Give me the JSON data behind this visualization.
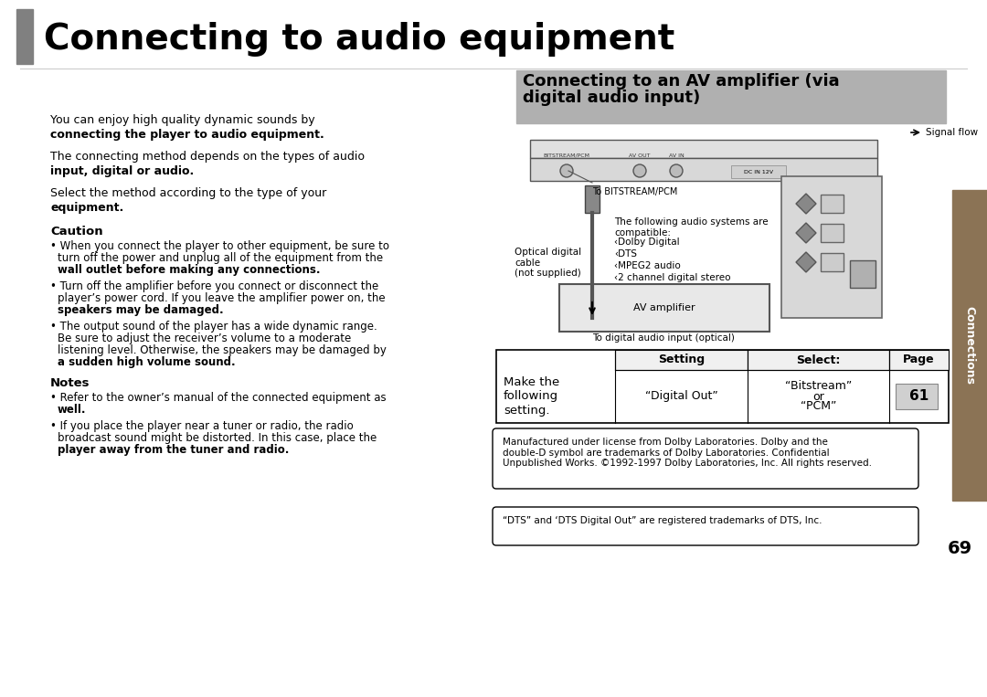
{
  "title": "Connecting to audio equipment",
  "title_bar_color": "#808080",
  "page_bg": "#ffffff",
  "section2_title_line1": "Connecting to an AV amplifier (via",
  "section2_title_line2": "digital audio input)",
  "section2_title_bg": "#b0b0b0",
  "signal_flow_text": "Signal flow",
  "to_bitstream_text": "To BITSTREAM/PCM",
  "compatible_text": "The following audio systems are\ncompatible:",
  "compatible_list": [
    "‹Dolby Digital",
    "‹DTS",
    "‹MPEG2 audio",
    "‹2 channel digital stereo"
  ],
  "optical_text": "Optical digital\ncable\n(not supplied)",
  "av_amplifier_text": "AV amplifier",
  "to_digital_text": "To digital audio input (optical)",
  "table_header": [
    "Setting",
    "Select:",
    "Page"
  ],
  "table_row1_left": "Make the\nfollowing\nsetting.",
  "table_row1_mid": "“Digital Out”",
  "table_row1_right_top": "“Bitstream”",
  "table_row1_right_mid": "or",
  "table_row1_right_bot": "“PCM”",
  "table_page": "61",
  "dolby_notice": "Manufactured under license from Dolby Laboratories. Dolby and the\ndouble-D symbol are trademarks of Dolby Laboratories. Confidential\nUnpublished Works. ©1992-1997 Dolby Laboratories, Inc. All rights reserved.",
  "dts_notice": "“DTS” and ‘DTS Digital Out” are registered trademarks of DTS, Inc.",
  "page_number": "69",
  "connections_text": "Connections",
  "sidebar_color": "#8B7355",
  "left_texts": [
    [
      55,
      638,
      "You can enjoy high quality dynamic sounds by",
      9,
      "normal"
    ],
    [
      55,
      622,
      "connecting the player to audio equipment.",
      9,
      "bold"
    ],
    [
      55,
      598,
      "The connecting method depends on the types of audio",
      9,
      "normal"
    ],
    [
      55,
      582,
      "input, digital or audio.",
      9,
      "bold"
    ],
    [
      55,
      558,
      "Select the method according to the type of your",
      9,
      "normal"
    ],
    [
      55,
      542,
      "equipment.",
      9,
      "bold"
    ],
    [
      55,
      516,
      "Caution",
      9.5,
      "bold"
    ],
    [
      55,
      500,
      "• When you connect the player to other equipment, be sure to",
      8.5,
      "normal"
    ],
    [
      63,
      487,
      "turn off the power and unplug all of the equipment from the",
      8.5,
      "normal"
    ],
    [
      63,
      474,
      "wall outlet before making any connections.",
      8.5,
      "bold"
    ],
    [
      55,
      456,
      "• Turn off the amplifier before you connect or disconnect the",
      8.5,
      "normal"
    ],
    [
      63,
      443,
      "player’s power cord. If you leave the amplifier power on, the",
      8.5,
      "normal"
    ],
    [
      63,
      430,
      "speakers may be damaged.",
      8.5,
      "bold"
    ],
    [
      55,
      412,
      "• The output sound of the player has a wide dynamic range.",
      8.5,
      "normal"
    ],
    [
      63,
      399,
      "Be sure to adjust the receiver’s volume to a moderate",
      8.5,
      "normal"
    ],
    [
      63,
      386,
      "listening level. Otherwise, the speakers may be damaged by",
      8.5,
      "normal"
    ],
    [
      63,
      373,
      "a sudden high volume sound.",
      8.5,
      "bold"
    ],
    [
      55,
      350,
      "Notes",
      9.5,
      "bold"
    ],
    [
      55,
      334,
      "• Refer to the owner’s manual of the connected equipment as",
      8.5,
      "normal"
    ],
    [
      63,
      321,
      "well.",
      8.5,
      "bold"
    ],
    [
      55,
      303,
      "• If you place the player near a tuner or radio, the radio",
      8.5,
      "normal"
    ],
    [
      63,
      290,
      "broadcast sound might be distorted. In this case, place the",
      8.5,
      "normal"
    ],
    [
      63,
      277,
      "player away from the tuner and radio.",
      8.5,
      "bold"
    ]
  ]
}
